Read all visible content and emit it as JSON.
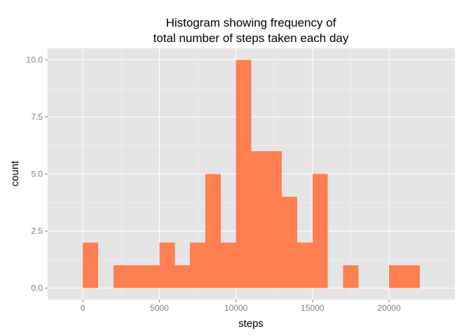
{
  "chart_data": {
    "type": "bar",
    "title_lines": [
      "Histogram showing frequency of",
      "total number of steps taken each day"
    ],
    "xlabel": "steps",
    "ylabel": "count",
    "bin_width": 1000,
    "bins": [
      {
        "start": 0,
        "end": 1000,
        "count": 2
      },
      {
        "start": 1000,
        "end": 2000,
        "count": 0
      },
      {
        "start": 2000,
        "end": 3000,
        "count": 1
      },
      {
        "start": 3000,
        "end": 4000,
        "count": 1
      },
      {
        "start": 4000,
        "end": 5000,
        "count": 1
      },
      {
        "start": 5000,
        "end": 6000,
        "count": 2
      },
      {
        "start": 6000,
        "end": 7000,
        "count": 1
      },
      {
        "start": 7000,
        "end": 8000,
        "count": 2
      },
      {
        "start": 8000,
        "end": 9000,
        "count": 5
      },
      {
        "start": 9000,
        "end": 10000,
        "count": 2
      },
      {
        "start": 10000,
        "end": 11000,
        "count": 10
      },
      {
        "start": 11000,
        "end": 12000,
        "count": 6
      },
      {
        "start": 12000,
        "end": 13000,
        "count": 6
      },
      {
        "start": 13000,
        "end": 14000,
        "count": 4
      },
      {
        "start": 14000,
        "end": 15000,
        "count": 2
      },
      {
        "start": 15000,
        "end": 16000,
        "count": 5
      },
      {
        "start": 16000,
        "end": 17000,
        "count": 0
      },
      {
        "start": 17000,
        "end": 18000,
        "count": 1
      },
      {
        "start": 18000,
        "end": 19000,
        "count": 0
      },
      {
        "start": 19000,
        "end": 20000,
        "count": 0
      },
      {
        "start": 20000,
        "end": 21000,
        "count": 1
      },
      {
        "start": 21000,
        "end": 22000,
        "count": 1
      }
    ],
    "xlim": [
      -2300,
      24300
    ],
    "ylim": [
      -0.5,
      10.5
    ],
    "x_ticks": [
      0,
      5000,
      10000,
      15000,
      20000
    ],
    "x_tick_labels": [
      "0",
      "5000",
      "10000",
      "15000",
      "20000"
    ],
    "y_ticks": [
      0,
      2.5,
      5,
      7.5,
      10
    ],
    "y_tick_labels": [
      "0.0",
      "2.5",
      "5.0",
      "7.5",
      "10.0"
    ],
    "grid": true,
    "colors": {
      "bar_fill": "#ff7f50",
      "panel_background": "#e5e5e5",
      "grid_major": "#ffffff",
      "grid_minor": "#f2f2f2",
      "tick_label": "#7f7f7f"
    }
  }
}
